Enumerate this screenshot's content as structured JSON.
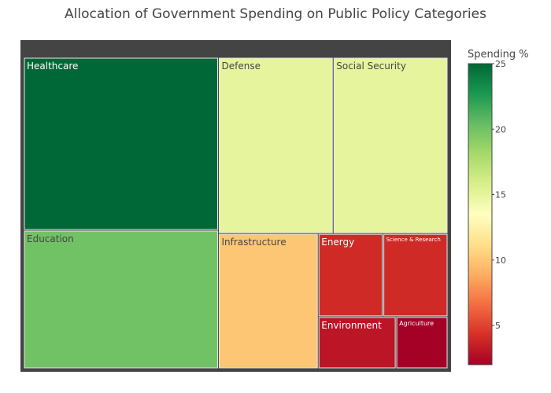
{
  "chart_data": {
    "type": "treemap",
    "title": "Allocation of Government Spending on Public Policy Categories",
    "root_color": "#444444",
    "items": [
      {
        "label": "Healthcare",
        "value": 25
      },
      {
        "label": "Education",
        "value": 20
      },
      {
        "label": "Defense",
        "value": 15
      },
      {
        "label": "Social Security",
        "value": 15
      },
      {
        "label": "Infrastructure",
        "value": 10
      },
      {
        "label": "Energy",
        "value": 4
      },
      {
        "label": "Science & Research",
        "value": 4
      },
      {
        "label": "Environment",
        "value": 3
      },
      {
        "label": "Agriculture",
        "value": 2
      }
    ],
    "colorbar": {
      "title": "Spending %",
      "min": 2,
      "max": 25,
      "ticks": [
        5,
        10,
        15,
        20,
        25
      ],
      "colorscale": [
        "#a50026",
        "#d73027",
        "#f46d43",
        "#fdae61",
        "#fee08b",
        "#ffffbf",
        "#d9ef8b",
        "#a6d96a",
        "#66bd63",
        "#1a9850",
        "#006837"
      ]
    }
  }
}
